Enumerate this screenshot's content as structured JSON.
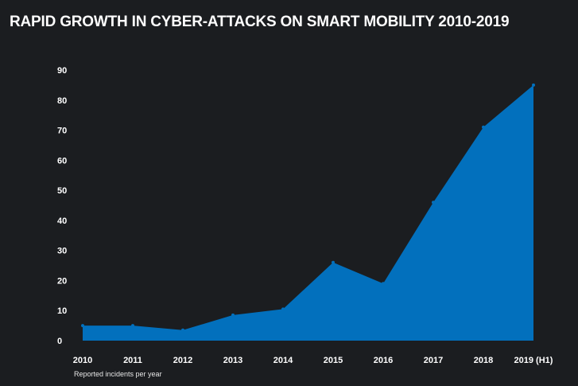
{
  "title": "RAPID GROWTH IN CYBER-ATTACKS ON SMART MOBILITY 2010-2019",
  "caption": "Reported incidents per year",
  "colors": {
    "background": "#1b1d20",
    "area_fill": "#0270bd",
    "text": "#ffffff"
  },
  "chart_data": {
    "type": "area",
    "title": "RAPID GROWTH IN CYBER-ATTACKS ON SMART MOBILITY 2010-2019",
    "categories": [
      "2010",
      "2011",
      "2012",
      "2013",
      "2014",
      "2015",
      "2016",
      "2017",
      "2018",
      "2019 (H1)"
    ],
    "values": [
      5,
      5,
      3.5,
      8.5,
      10.5,
      26,
      19,
      46,
      71,
      85
    ],
    "yticks": [
      0,
      10,
      20,
      30,
      40,
      50,
      60,
      70,
      80,
      90
    ],
    "ylim": [
      0,
      90
    ],
    "grid": false,
    "legend": "none"
  }
}
